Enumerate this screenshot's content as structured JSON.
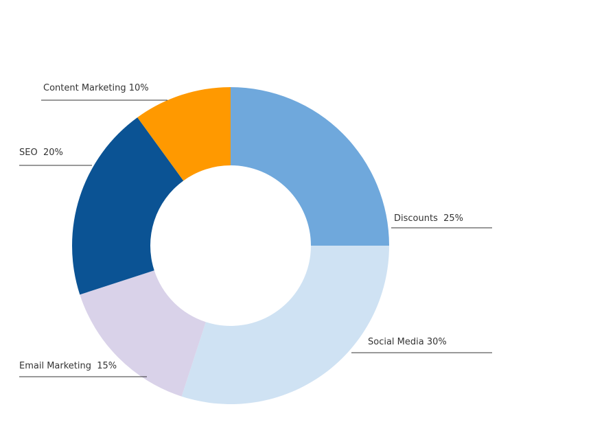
{
  "chart_data": {
    "type": "pie",
    "donut": true,
    "title": "",
    "slices": [
      {
        "label": "Discounts  25%",
        "name": "Discounts",
        "value": 25,
        "color": "#6FA8DC"
      },
      {
        "label": "Social Media 30%",
        "name": "Social Media",
        "value": 30,
        "color": "#CFE2F3"
      },
      {
        "label": "Email Marketing  15%",
        "name": "Email Marketing",
        "value": 15,
        "color": "#D9D2E9"
      },
      {
        "label": "SEO  20%",
        "name": "SEO",
        "value": 20,
        "color": "#0B5394"
      },
      {
        "label": "Content Marketing 10%",
        "name": "Content Marketing",
        "value": 10,
        "color": "#FF9900"
      }
    ],
    "start_angle": "12 o'clock",
    "direction": "clockwise",
    "legend": "none"
  }
}
